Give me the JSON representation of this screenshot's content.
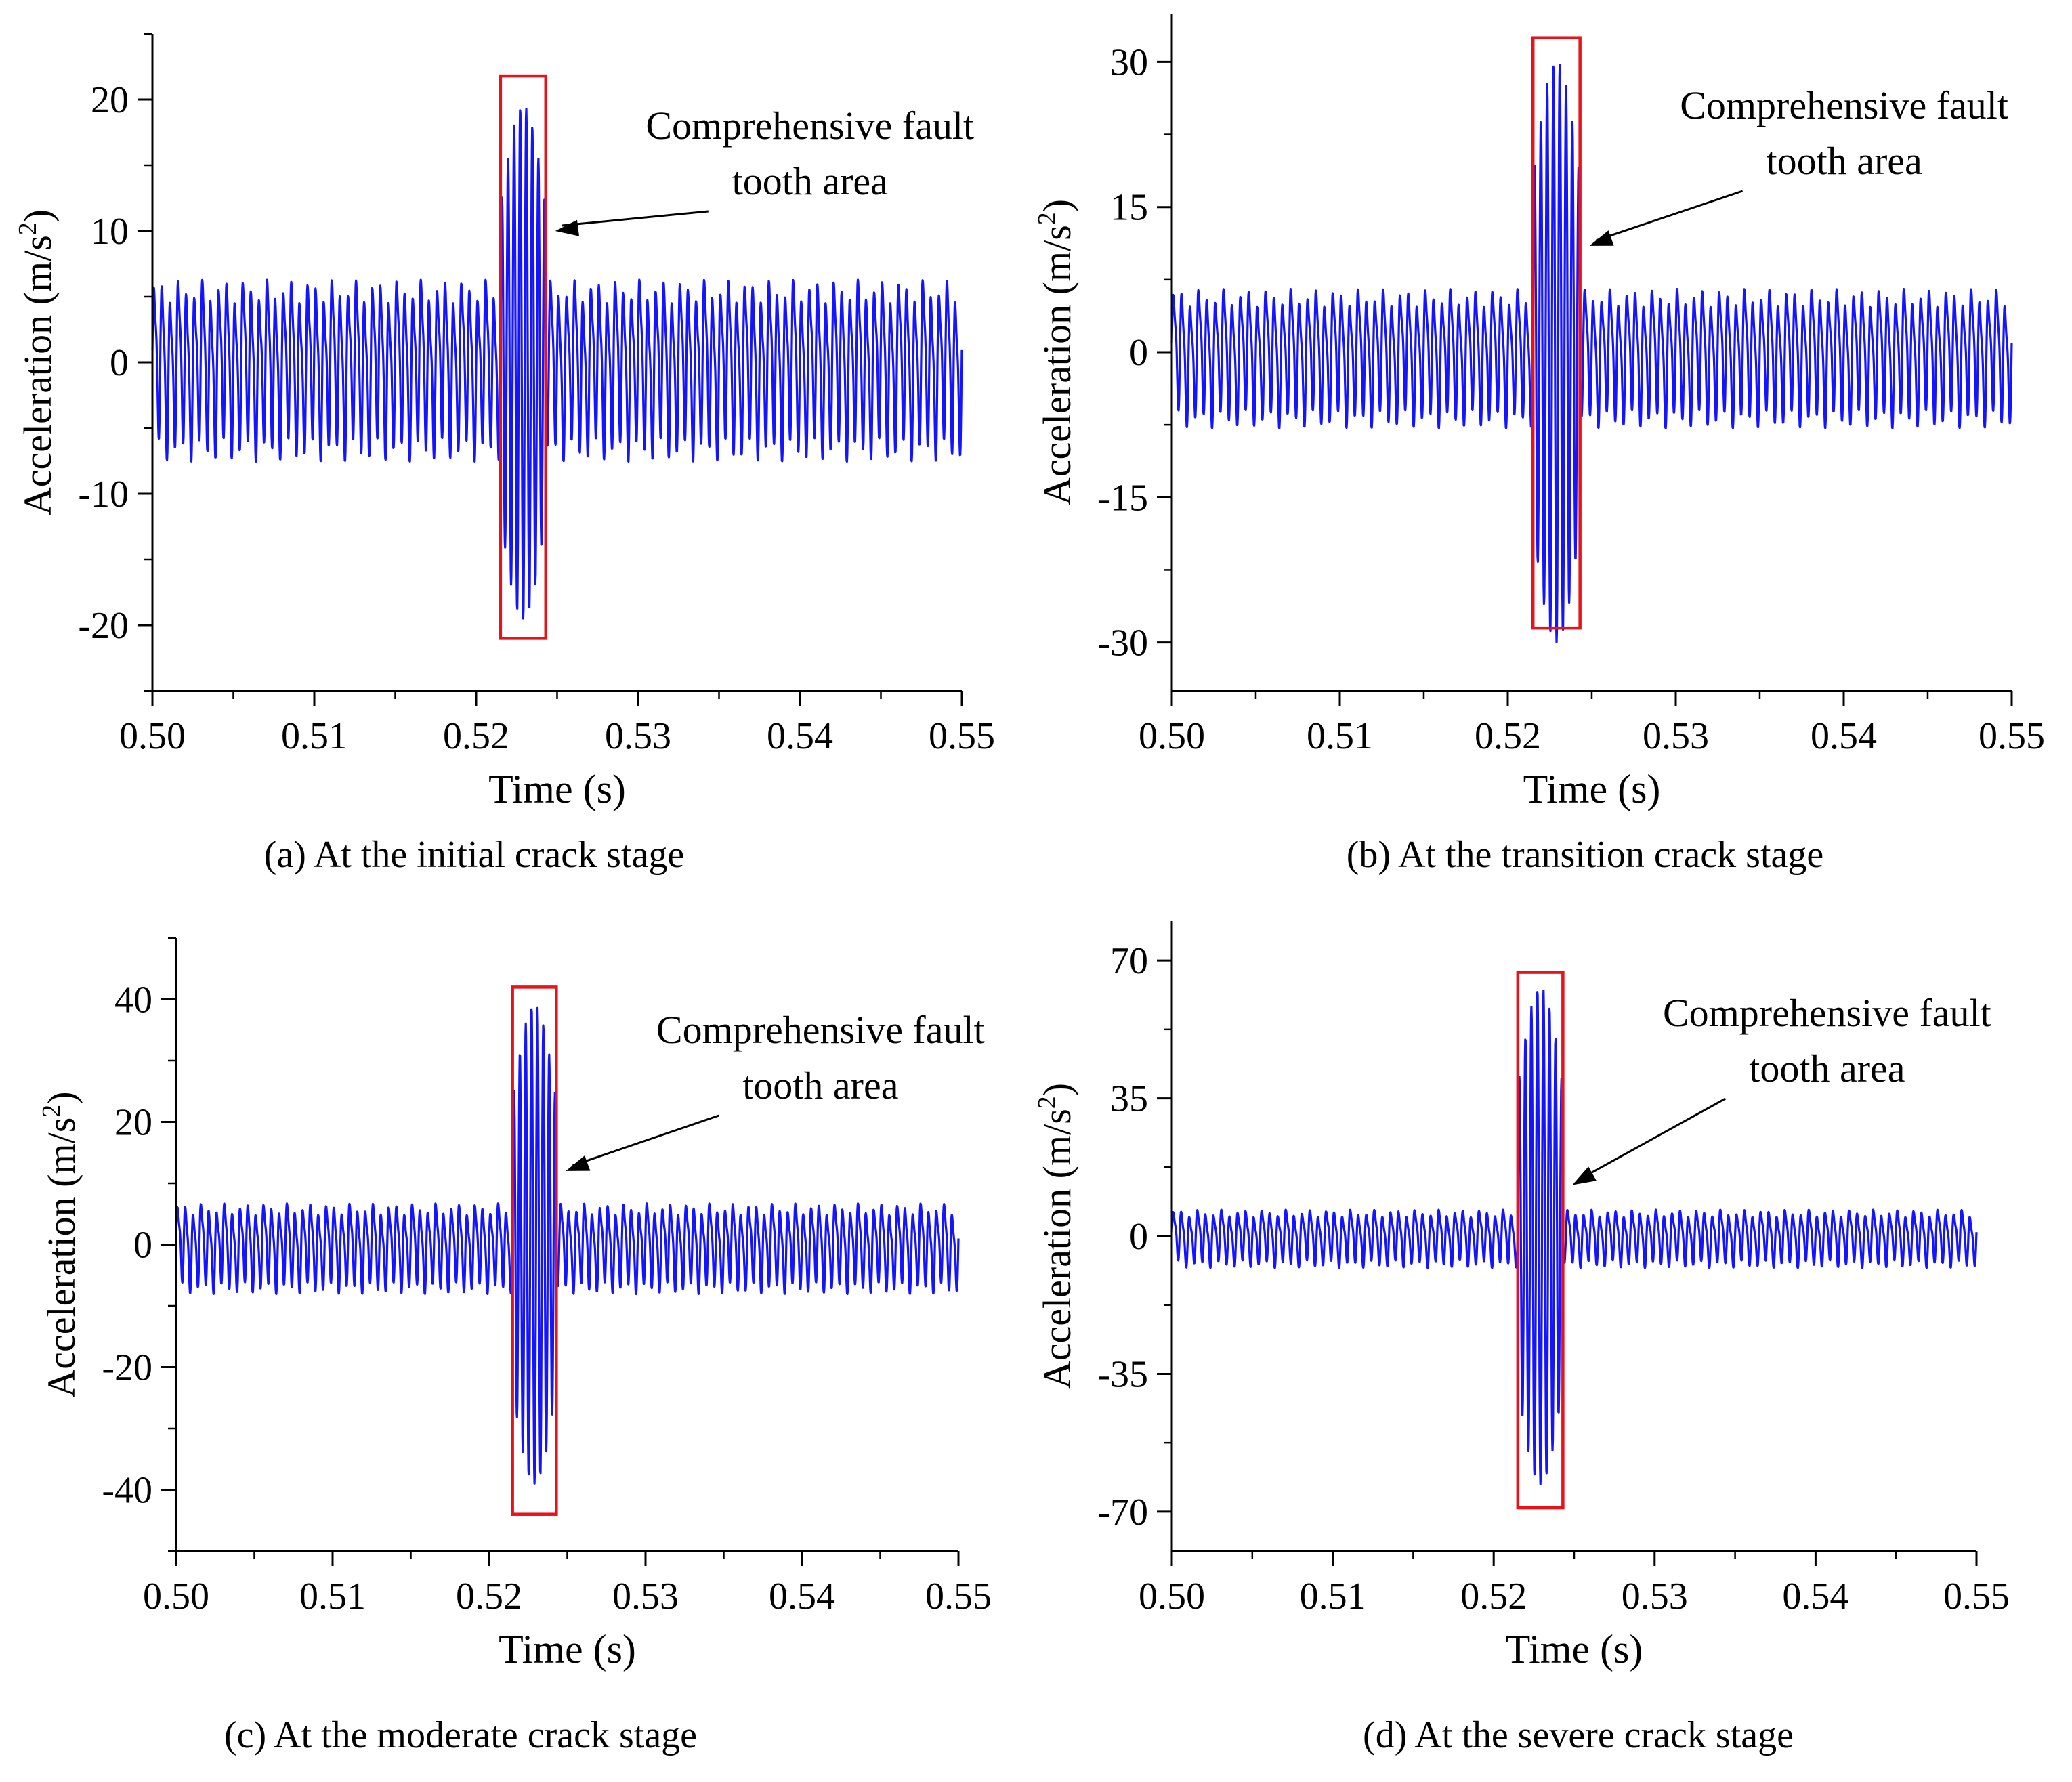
{
  "colors": {
    "signal": "#1414ff",
    "box": "#e8121a",
    "axis": "#000000"
  },
  "chart_data": [
    {
      "type": "line",
      "caption": "(a) At the initial crack stage",
      "xlabel": "Time (s)",
      "ylabel_prefix": "Acceleration (m/s",
      "ylabel_sup": "2",
      "ylabel_suffix": ")",
      "xlim": [
        0.5,
        0.55
      ],
      "ylim": [
        -25,
        25
      ],
      "xticks": [
        0.5,
        0.51,
        0.52,
        0.53,
        0.54,
        0.55
      ],
      "xtick_labels": [
        "0.50",
        "0.51",
        "0.52",
        "0.53",
        "0.54",
        "0.55"
      ],
      "yticks": [
        -20,
        -10,
        0,
        10,
        20
      ],
      "ytick_labels": [
        "-20",
        "-10",
        "0",
        "10",
        "20"
      ],
      "signal": {
        "base_amplitude": 7.5,
        "fault_amplitude": 19.5,
        "fault_start": 0.5215,
        "fault_end": 0.5243,
        "mesh_period": 0.0005
      },
      "fault_box": {
        "x0": 0.5215,
        "x1": 0.5243,
        "y0": -21,
        "y1": 21.8
      },
      "annotation": {
        "line1": "Comprehensive fault",
        "line2": "tooth area",
        "arrow_target_x": 0.5243,
        "arrow_target_y": 10
      }
    },
    {
      "type": "line",
      "caption": "(b) At the transition crack stage",
      "xlabel": "Time (s)",
      "ylabel_prefix": "Acceleration (m/s",
      "ylabel_sup": "2",
      "ylabel_suffix": ")",
      "xlim": [
        0.5,
        0.55
      ],
      "ylim": [
        -35,
        35
      ],
      "xticks": [
        0.5,
        0.51,
        0.52,
        0.53,
        0.54,
        0.55
      ],
      "xtick_labels": [
        "0.50",
        "0.51",
        "0.52",
        "0.53",
        "0.54",
        "0.55"
      ],
      "yticks": [
        -30,
        -15,
        0,
        15,
        30
      ],
      "ytick_labels": [
        "-30",
        "-15",
        "0",
        "15",
        "30"
      ],
      "signal": {
        "base_amplitude": 7.8,
        "fault_amplitude": 30,
        "fault_start": 0.5215,
        "fault_end": 0.5243,
        "mesh_period": 0.0005
      },
      "fault_box": {
        "x0": 0.5215,
        "x1": 0.5243,
        "y0": -28.5,
        "y1": 32.5
      },
      "annotation": {
        "line1": "Comprehensive fault",
        "line2": "tooth area",
        "arrow_target_x": 0.5243,
        "arrow_target_y": 11
      }
    },
    {
      "type": "line",
      "caption": "(c) At the moderate crack stage",
      "xlabel": "Time (s)",
      "ylabel_prefix": "Acceleration (m/s",
      "ylabel_sup": "2",
      "ylabel_suffix": ")",
      "xlim": [
        0.5,
        0.55
      ],
      "ylim": [
        -50,
        50
      ],
      "xticks": [
        0.5,
        0.51,
        0.52,
        0.53,
        0.54,
        0.55
      ],
      "xtick_labels": [
        "0.50",
        "0.51",
        "0.52",
        "0.53",
        "0.54",
        "0.55"
      ],
      "yticks": [
        -40,
        -20,
        0,
        20,
        40
      ],
      "ytick_labels": [
        "-40",
        "-20",
        "0",
        "20",
        "40"
      ],
      "signal": {
        "base_amplitude": 8,
        "fault_amplitude": 39,
        "fault_start": 0.5215,
        "fault_end": 0.5243,
        "mesh_period": 0.0005
      },
      "fault_box": {
        "x0": 0.5215,
        "x1": 0.5243,
        "y0": -44,
        "y1": 42
      },
      "annotation": {
        "line1": "Comprehensive fault",
        "line2": "tooth area",
        "arrow_target_x": 0.5243,
        "arrow_target_y": 12
      }
    },
    {
      "type": "line",
      "caption": "(d) At the severe crack stage",
      "xlabel": "Time (s)",
      "ylabel_prefix": "Acceleration (m/s",
      "ylabel_sup": "2",
      "ylabel_suffix": ")",
      "xlim": [
        0.5,
        0.55
      ],
      "ylim": [
        -80,
        80
      ],
      "xticks": [
        0.5,
        0.51,
        0.52,
        0.53,
        0.54,
        0.55
      ],
      "xtick_labels": [
        "0.50",
        "0.51",
        "0.52",
        "0.53",
        "0.54",
        "0.55"
      ],
      "yticks": [
        -70,
        -35,
        0,
        35,
        70
      ],
      "ytick_labels": [
        "-70",
        "-35",
        "0",
        "35",
        "70"
      ],
      "signal": {
        "base_amplitude": 8,
        "fault_amplitude": 63,
        "fault_start": 0.5215,
        "fault_end": 0.5243,
        "mesh_period": 0.0005
      },
      "fault_box": {
        "x0": 0.5215,
        "x1": 0.5243,
        "y0": -69,
        "y1": 67
      },
      "annotation": {
        "line1": "Comprehensive fault",
        "line2": "tooth area",
        "arrow_target_x": 0.5243,
        "arrow_target_y": 13
      }
    }
  ]
}
